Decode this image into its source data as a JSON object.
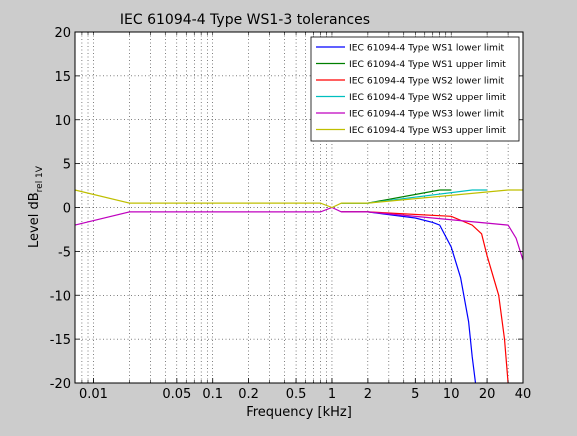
{
  "chart_data": {
    "type": "line",
    "title": "IEC 61094-4 Type WS1-3 tolerances",
    "xlabel": "Frequency [kHz]",
    "ylabel_main": "Level dB",
    "ylabel_sub": "rel 1V",
    "x_scale": "log",
    "xlim": [
      0.007,
      40
    ],
    "ylim": [
      -20,
      20
    ],
    "grid": true,
    "legend_position": "top-right",
    "xticks": [
      {
        "value": 0.01,
        "label": "0.01"
      },
      {
        "value": 0.05,
        "label": "0.05"
      },
      {
        "value": 0.1,
        "label": "0.1"
      },
      {
        "value": 0.2,
        "label": "0.2"
      },
      {
        "value": 0.5,
        "label": "0.5"
      },
      {
        "value": 1,
        "label": "1"
      },
      {
        "value": 2,
        "label": "2"
      },
      {
        "value": 5,
        "label": "5"
      },
      {
        "value": 10,
        "label": "10"
      },
      {
        "value": 20,
        "label": "20"
      },
      {
        "value": 40,
        "label": "40"
      }
    ],
    "yticks": [
      {
        "value": 20,
        "label": "20"
      },
      {
        "value": 15,
        "label": "15"
      },
      {
        "value": 10,
        "label": "10"
      },
      {
        "value": 5,
        "label": "5"
      },
      {
        "value": 0,
        "label": "0"
      },
      {
        "value": -5,
        "label": "-5"
      },
      {
        "value": -10,
        "label": "-10"
      },
      {
        "value": -15,
        "label": "-15"
      },
      {
        "value": -20,
        "label": "-20"
      }
    ],
    "series": [
      {
        "name": "IEC 61094-4 Type WS1 lower limit",
        "color": "#0000ff",
        "x": [
          1.2,
          2,
          5,
          7,
          8,
          10,
          12,
          14,
          15,
          16
        ],
        "y": [
          -0.5,
          -0.5,
          -1.2,
          -1.7,
          -2.0,
          -4.5,
          -8.0,
          -13.0,
          -17.0,
          -20.0
        ]
      },
      {
        "name": "IEC 61094-4 Type WS1 upper limit",
        "color": "#007f00",
        "x": [
          1.2,
          2,
          8,
          10
        ],
        "y": [
          0.5,
          0.5,
          2.0,
          2.0
        ]
      },
      {
        "name": "IEC 61094-4 Type WS2 lower limit",
        "color": "#ff0000",
        "x": [
          1.2,
          2,
          10,
          15,
          18,
          20,
          25,
          28,
          30
        ],
        "y": [
          -0.5,
          -0.5,
          -1.0,
          -2.0,
          -3.0,
          -5.5,
          -10.0,
          -15.0,
          -20.0
        ]
      },
      {
        "name": "IEC 61094-4 Type WS2 upper limit",
        "color": "#00bfbf",
        "x": [
          1.2,
          2,
          15,
          20
        ],
        "y": [
          0.5,
          0.5,
          2.0,
          2.0
        ]
      },
      {
        "name": "IEC 61094-4 Type WS3 lower limit",
        "color": "#bf00bf",
        "x": [
          0.007,
          0.02,
          0.8,
          1.0,
          1.2,
          2,
          30,
          35,
          40
        ],
        "y": [
          -2.0,
          -0.5,
          -0.5,
          0,
          -0.5,
          -0.5,
          -2.0,
          -3.5,
          -6.0
        ]
      },
      {
        "name": "IEC 61094-4 Type WS3 upper limit",
        "color": "#bfbf00",
        "x": [
          0.007,
          0.02,
          0.8,
          1.0,
          1.2,
          2,
          30,
          40
        ],
        "y": [
          2.0,
          0.5,
          0.5,
          0,
          0.5,
          0.5,
          2.0,
          2.0
        ]
      }
    ]
  }
}
